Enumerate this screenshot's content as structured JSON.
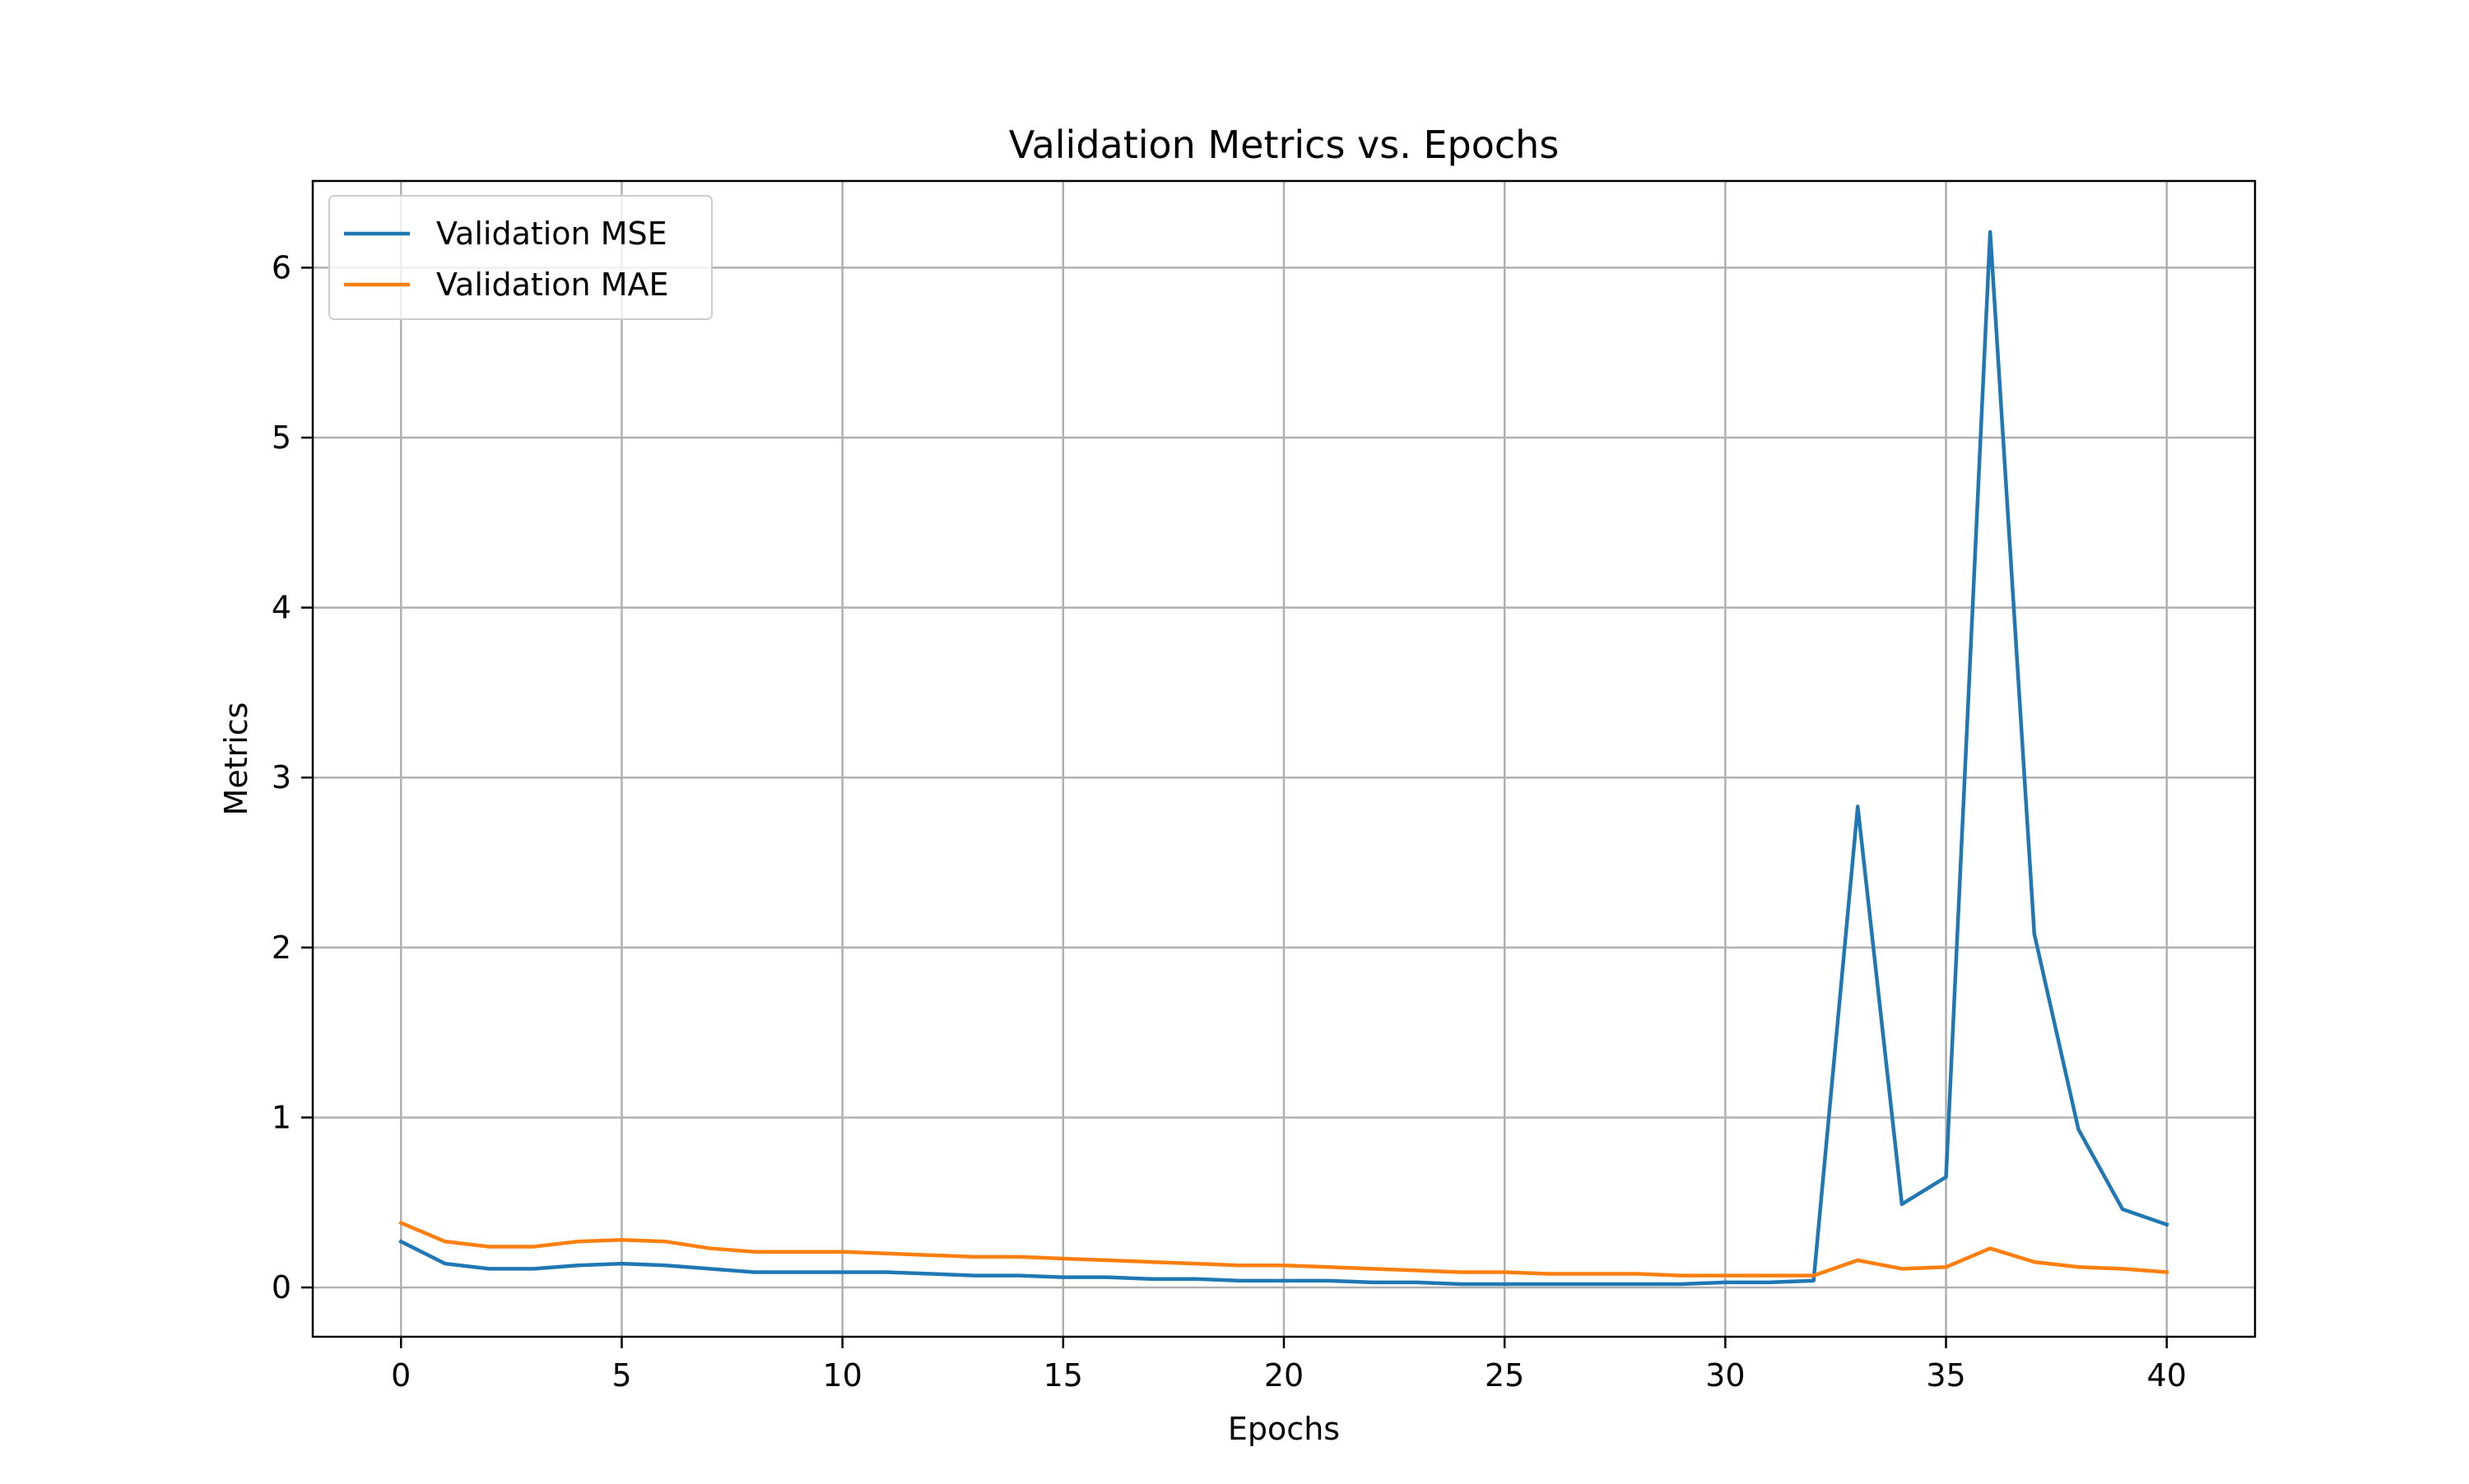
{
  "chart_data": {
    "type": "line",
    "title": "Validation Metrics vs. Epochs",
    "xlabel": "Epochs",
    "ylabel": "Metrics",
    "xlim": [
      -2,
      42
    ],
    "ylim": [
      -0.29,
      6.51
    ],
    "x_ticks": [
      0,
      5,
      10,
      15,
      20,
      25,
      30,
      35,
      40
    ],
    "y_ticks": [
      0,
      1,
      2,
      3,
      4,
      5,
      6
    ],
    "grid": true,
    "legend_position": "upper-left",
    "x": [
      0,
      1,
      2,
      3,
      4,
      5,
      6,
      7,
      8,
      9,
      10,
      11,
      12,
      13,
      14,
      15,
      16,
      17,
      18,
      19,
      20,
      21,
      22,
      23,
      24,
      25,
      26,
      27,
      28,
      29,
      30,
      31,
      32,
      33,
      34,
      35,
      36,
      37,
      38,
      39,
      40
    ],
    "series": [
      {
        "name": "Validation MSE",
        "color": "#1f77b4",
        "values": [
          0.27,
          0.14,
          0.11,
          0.11,
          0.13,
          0.14,
          0.13,
          0.11,
          0.09,
          0.09,
          0.09,
          0.09,
          0.08,
          0.07,
          0.07,
          0.06,
          0.06,
          0.05,
          0.05,
          0.04,
          0.04,
          0.04,
          0.03,
          0.03,
          0.02,
          0.02,
          0.02,
          0.02,
          0.02,
          0.02,
          0.03,
          0.03,
          0.04,
          2.83,
          0.49,
          0.65,
          6.21,
          2.08,
          0.93,
          0.46,
          0.37
        ]
      },
      {
        "name": "Validation MAE",
        "color": "#ff7f0e",
        "values": [
          0.38,
          0.27,
          0.24,
          0.24,
          0.27,
          0.28,
          0.27,
          0.23,
          0.21,
          0.21,
          0.21,
          0.2,
          0.19,
          0.18,
          0.18,
          0.17,
          0.16,
          0.15,
          0.14,
          0.13,
          0.13,
          0.12,
          0.11,
          0.1,
          0.09,
          0.09,
          0.08,
          0.08,
          0.08,
          0.07,
          0.07,
          0.07,
          0.07,
          0.16,
          0.11,
          0.12,
          0.23,
          0.15,
          0.12,
          0.11,
          0.09
        ]
      }
    ]
  }
}
